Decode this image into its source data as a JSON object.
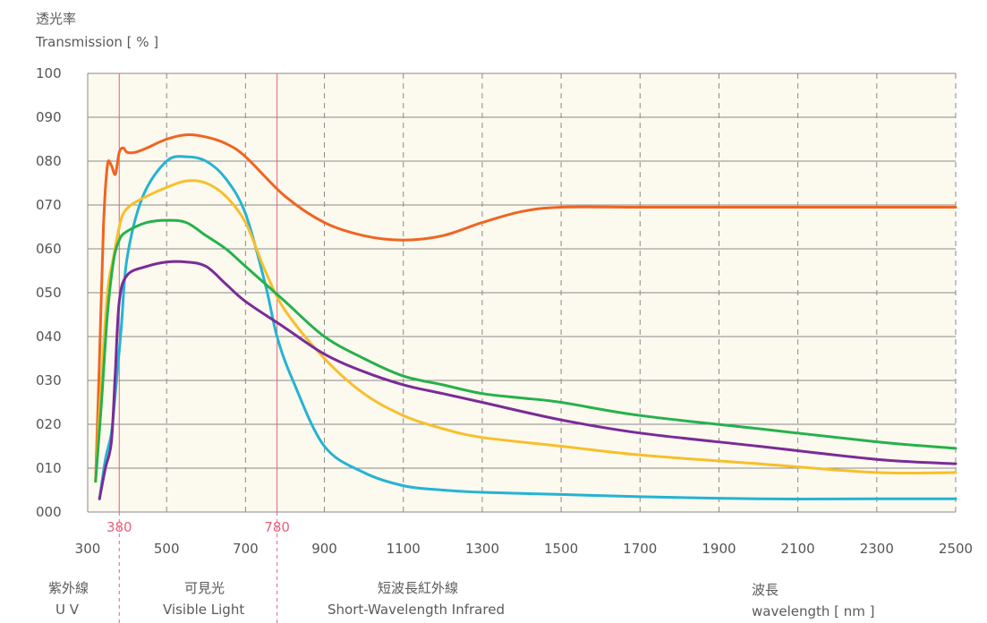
{
  "chart_data": {
    "type": "line",
    "ylabel_cn": "透光率",
    "ylabel": "Transmission [ % ]",
    "xlabel_cn": "波長",
    "xlabel": "wavelength [ nm ]",
    "xlim": [
      300,
      2500
    ],
    "ylim": [
      0,
      100
    ],
    "x_ticks": [
      "300",
      "500",
      "700",
      "900",
      "1100",
      "1300",
      "1500",
      "1700",
      "1900",
      "2100",
      "2300",
      "2500"
    ],
    "y_ticks": [
      "000",
      "010",
      "020",
      "030",
      "040",
      "050",
      "060",
      "070",
      "080",
      "090",
      "100"
    ],
    "grid": true,
    "markers": [
      {
        "x": 380,
        "label": "380",
        "color": "#e8607a"
      },
      {
        "x": 780,
        "label": "780",
        "color": "#e8607a"
      }
    ],
    "regions": [
      {
        "cn": "紫外線",
        "en": "U V"
      },
      {
        "cn": "可見光",
        "en": "Visible Light"
      },
      {
        "cn": "短波長紅外線",
        "en": "Short-Wavelength Infrared"
      }
    ],
    "series": [
      {
        "color": "#f06422",
        "x": [
          320,
          330,
          340,
          350,
          360,
          370,
          380,
          390,
          400,
          420,
          450,
          500,
          550,
          600,
          650,
          700,
          800,
          900,
          1000,
          1100,
          1200,
          1300,
          1400,
          1500,
          1700,
          2000,
          2300,
          2500
        ],
        "y": [
          7,
          35,
          65,
          79,
          79,
          77,
          82,
          83,
          82,
          82,
          83,
          85,
          86,
          85.5,
          84,
          81,
          72,
          66,
          63,
          62,
          63,
          66,
          68.5,
          69.5,
          69.5,
          69.5,
          69.5,
          69.5
        ]
      },
      {
        "color": "#24b3d3",
        "x": [
          330,
          345,
          360,
          370,
          385,
          400,
          440,
          500,
          550,
          600,
          650,
          700,
          750,
          780,
          820,
          900,
          1000,
          1100,
          1200,
          1300,
          1500,
          1700,
          2000,
          2300,
          2500
        ],
        "y": [
          3,
          12,
          18,
          27,
          42,
          58,
          72,
          80,
          81,
          80,
          76,
          68,
          52,
          40,
          30,
          15,
          9,
          6,
          5,
          4.5,
          4,
          3.5,
          3,
          3,
          3
        ]
      },
      {
        "color": "#f7bf2a",
        "x": [
          320,
          335,
          350,
          365,
          380,
          390,
          410,
          450,
          500,
          550,
          600,
          650,
          700,
          750,
          800,
          900,
          1000,
          1100,
          1200,
          1300,
          1500,
          1700,
          2000,
          2300,
          2500
        ],
        "y": [
          7,
          30,
          50,
          58,
          65,
          68,
          70,
          72,
          74,
          75.5,
          75,
          72,
          66,
          55,
          46,
          35,
          27,
          22,
          19,
          17,
          15,
          13,
          11,
          9,
          9
        ]
      },
      {
        "color": "#25b14c",
        "x": [
          320,
          335,
          350,
          365,
          380,
          400,
          450,
          500,
          550,
          600,
          650,
          700,
          800,
          900,
          1000,
          1100,
          1200,
          1300,
          1400,
          1500,
          1700,
          2000,
          2300,
          2500
        ],
        "y": [
          7,
          25,
          45,
          57,
          62,
          64,
          66,
          66.5,
          66,
          63,
          60,
          56,
          48,
          40,
          35,
          31,
          29,
          27,
          26,
          25,
          22,
          19,
          16,
          14.5
        ]
      },
      {
        "color": "#7a2b98",
        "x": [
          330,
          345,
          360,
          370,
          380,
          400,
          450,
          500,
          550,
          600,
          650,
          700,
          800,
          900,
          1000,
          1100,
          1200,
          1300,
          1500,
          1700,
          2000,
          2300,
          2500
        ],
        "y": [
          3,
          10,
          16,
          32,
          48,
          54,
          56,
          57,
          57,
          56,
          52,
          48,
          42,
          36,
          32,
          29,
          27,
          25,
          21,
          18,
          15,
          12,
          11
        ]
      }
    ]
  }
}
